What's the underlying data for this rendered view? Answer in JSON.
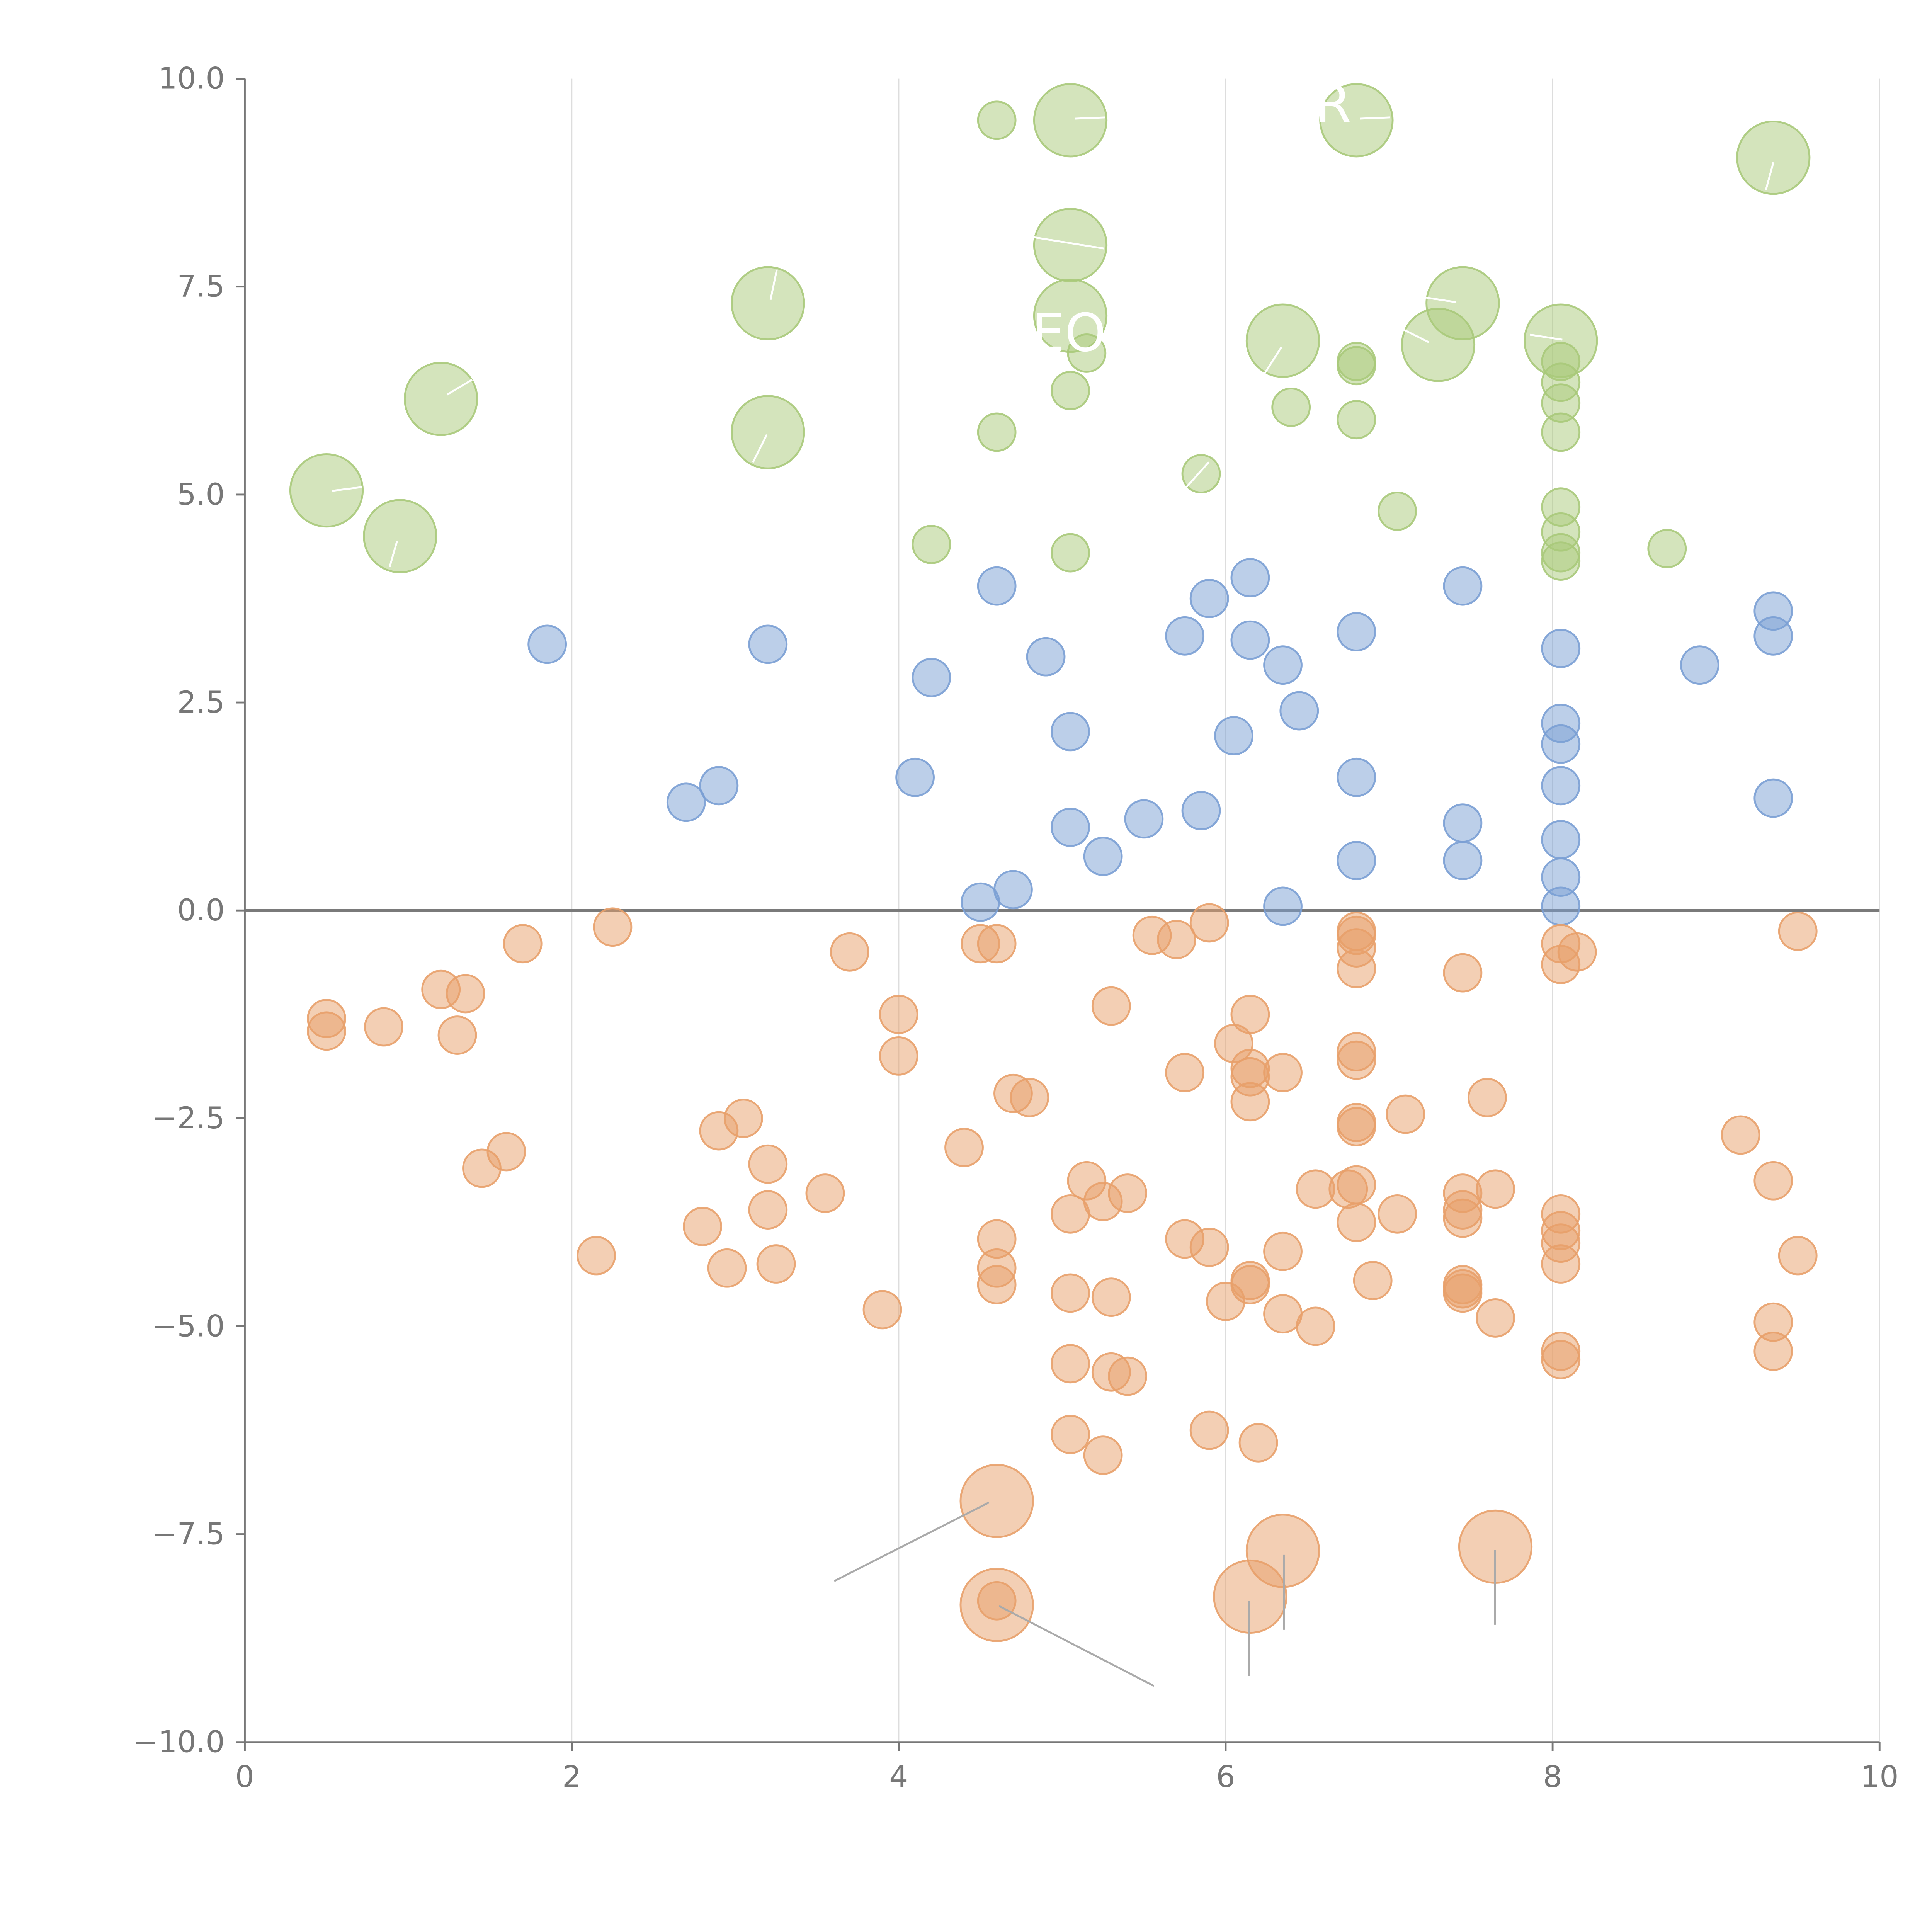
{
  "chart_data": {
    "type": "scatter",
    "title": "",
    "xlabel": "",
    "ylabel": "",
    "xlim": [
      0,
      10
    ],
    "ylim": [
      -10,
      10
    ],
    "x_ticks": [
      0,
      2,
      4,
      6,
      8,
      10
    ],
    "x_tick_labels": [
      "0",
      "2",
      "4",
      "6",
      "8",
      "10"
    ],
    "y_ticks": [
      10,
      7.5,
      5,
      2.5,
      0,
      -2.5,
      -5,
      -7.5,
      -10
    ],
    "y_tick_labels": [
      "10.0",
      "7.5",
      "5.0",
      "2.5",
      "0.0",
      "−2.5",
      "−5.0",
      "−7.5",
      "−10.0"
    ],
    "grid": "vertical lines at x ticks",
    "zero_line": 0,
    "series": [
      {
        "color": "#a9c97a",
        "points": [
          {
            "x": 4.6,
            "y": 9.5,
            "s": "small"
          },
          {
            "x": 5.05,
            "y": 9.5,
            "s": "large"
          },
          {
            "x": 6.8,
            "y": 9.5,
            "s": "large"
          },
          {
            "x": 9.35,
            "y": 9.05,
            "s": "large"
          },
          {
            "x": 5.05,
            "y": 8.0,
            "s": "large"
          },
          {
            "x": 3.2,
            "y": 7.3,
            "s": "large"
          },
          {
            "x": 5.05,
            "y": 7.15,
            "s": "large"
          },
          {
            "x": 7.45,
            "y": 7.3,
            "s": "large"
          },
          {
            "x": 6.35,
            "y": 6.85,
            "s": "large"
          },
          {
            "x": 7.3,
            "y": 6.8,
            "s": "large"
          },
          {
            "x": 8.05,
            "y": 6.85,
            "s": "large"
          },
          {
            "x": 5.15,
            "y": 6.7,
            "s": "small"
          },
          {
            "x": 6.8,
            "y": 6.6,
            "s": "small"
          },
          {
            "x": 6.8,
            "y": 6.55,
            "s": "small"
          },
          {
            "x": 8.05,
            "y": 6.6,
            "s": "small"
          },
          {
            "x": 8.05,
            "y": 6.35,
            "s": "small"
          },
          {
            "x": 5.05,
            "y": 6.25,
            "s": "small"
          },
          {
            "x": 1.2,
            "y": 6.15,
            "s": "large"
          },
          {
            "x": 8.05,
            "y": 6.1,
            "s": "small"
          },
          {
            "x": 6.4,
            "y": 6.05,
            "s": "small"
          },
          {
            "x": 6.8,
            "y": 5.9,
            "s": "small"
          },
          {
            "x": 3.2,
            "y": 5.75,
            "s": "large"
          },
          {
            "x": 4.6,
            "y": 5.75,
            "s": "small"
          },
          {
            "x": 8.05,
            "y": 5.75,
            "s": "small"
          },
          {
            "x": 5.85,
            "y": 5.25,
            "s": "small"
          },
          {
            "x": 0.5,
            "y": 5.05,
            "s": "large"
          },
          {
            "x": 8.05,
            "y": 4.85,
            "s": "small"
          },
          {
            "x": 7.05,
            "y": 4.8,
            "s": "small"
          },
          {
            "x": 0.95,
            "y": 4.5,
            "s": "large"
          },
          {
            "x": 8.05,
            "y": 4.55,
            "s": "small"
          },
          {
            "x": 4.2,
            "y": 4.4,
            "s": "small"
          },
          {
            "x": 8.7,
            "y": 4.35,
            "s": "small"
          },
          {
            "x": 8.05,
            "y": 4.3,
            "s": "small"
          },
          {
            "x": 5.05,
            "y": 4.3,
            "s": "small"
          },
          {
            "x": 8.05,
            "y": 4.2,
            "s": "small"
          }
        ]
      },
      {
        "color": "#7a9fd4",
        "points": [
          {
            "x": 6.15,
            "y": 4.0,
            "s": "small"
          },
          {
            "x": 4.6,
            "y": 3.9,
            "s": "small"
          },
          {
            "x": 7.45,
            "y": 3.9,
            "s": "small"
          },
          {
            "x": 5.9,
            "y": 3.75,
            "s": "small"
          },
          {
            "x": 9.35,
            "y": 3.6,
            "s": "small"
          },
          {
            "x": 6.8,
            "y": 3.35,
            "s": "small"
          },
          {
            "x": 9.35,
            "y": 3.3,
            "s": "small"
          },
          {
            "x": 5.75,
            "y": 3.3,
            "s": "small"
          },
          {
            "x": 6.15,
            "y": 3.25,
            "s": "small"
          },
          {
            "x": 1.85,
            "y": 3.2,
            "s": "small"
          },
          {
            "x": 3.2,
            "y": 3.2,
            "s": "small"
          },
          {
            "x": 8.05,
            "y": 3.15,
            "s": "small"
          },
          {
            "x": 4.9,
            "y": 3.05,
            "s": "small"
          },
          {
            "x": 6.35,
            "y": 2.95,
            "s": "small"
          },
          {
            "x": 8.9,
            "y": 2.95,
            "s": "small"
          },
          {
            "x": 4.2,
            "y": 2.8,
            "s": "small"
          },
          {
            "x": 6.45,
            "y": 2.4,
            "s": "small"
          },
          {
            "x": 8.05,
            "y": 2.25,
            "s": "small"
          },
          {
            "x": 5.05,
            "y": 2.15,
            "s": "small"
          },
          {
            "x": 6.05,
            "y": 2.1,
            "s": "small"
          },
          {
            "x": 8.05,
            "y": 2.0,
            "s": "small"
          },
          {
            "x": 4.1,
            "y": 1.6,
            "s": "small"
          },
          {
            "x": 6.8,
            "y": 1.6,
            "s": "small"
          },
          {
            "x": 2.9,
            "y": 1.5,
            "s": "small"
          },
          {
            "x": 8.05,
            "y": 1.5,
            "s": "small"
          },
          {
            "x": 2.7,
            "y": 1.3,
            "s": "small"
          },
          {
            "x": 9.35,
            "y": 1.35,
            "s": "small"
          },
          {
            "x": 5.85,
            "y": 1.2,
            "s": "small"
          },
          {
            "x": 5.5,
            "y": 1.1,
            "s": "small"
          },
          {
            "x": 7.45,
            "y": 1.05,
            "s": "small"
          },
          {
            "x": 5.05,
            "y": 1.0,
            "s": "small"
          },
          {
            "x": 8.05,
            "y": 0.85,
            "s": "small"
          },
          {
            "x": 5.25,
            "y": 0.65,
            "s": "small"
          },
          {
            "x": 6.8,
            "y": 0.6,
            "s": "small"
          },
          {
            "x": 7.45,
            "y": 0.6,
            "s": "small"
          },
          {
            "x": 8.05,
            "y": 0.4,
            "s": "small"
          },
          {
            "x": 4.7,
            "y": 0.25,
            "s": "small"
          },
          {
            "x": 4.5,
            "y": 0.1,
            "s": "small"
          },
          {
            "x": 6.35,
            "y": 0.05,
            "s": "small"
          },
          {
            "x": 8.05,
            "y": 0.05,
            "s": "small"
          }
        ]
      },
      {
        "color": "#e8a06a",
        "points": [
          {
            "x": 5.9,
            "y": -0.15,
            "s": "small"
          },
          {
            "x": 2.25,
            "y": -0.2,
            "s": "small"
          },
          {
            "x": 9.5,
            "y": -0.25,
            "s": "small"
          },
          {
            "x": 6.8,
            "y": -0.25,
            "s": "small"
          },
          {
            "x": 6.8,
            "y": -0.3,
            "s": "small"
          },
          {
            "x": 5.55,
            "y": -0.3,
            "s": "small"
          },
          {
            "x": 5.7,
            "y": -0.35,
            "s": "small"
          },
          {
            "x": 4.5,
            "y": -0.4,
            "s": "small"
          },
          {
            "x": 1.7,
            "y": -0.4,
            "s": "small"
          },
          {
            "x": 4.6,
            "y": -0.4,
            "s": "small"
          },
          {
            "x": 8.05,
            "y": -0.4,
            "s": "small"
          },
          {
            "x": 6.8,
            "y": -0.45,
            "s": "small"
          },
          {
            "x": 8.15,
            "y": -0.5,
            "s": "small"
          },
          {
            "x": 3.7,
            "y": -0.5,
            "s": "small"
          },
          {
            "x": 8.05,
            "y": -0.65,
            "s": "small"
          },
          {
            "x": 6.8,
            "y": -0.7,
            "s": "small"
          },
          {
            "x": 7.45,
            "y": -0.75,
            "s": "small"
          },
          {
            "x": 1.2,
            "y": -0.95,
            "s": "small"
          },
          {
            "x": 1.35,
            "y": -1.0,
            "s": "small"
          },
          {
            "x": 5.3,
            "y": -1.15,
            "s": "small"
          },
          {
            "x": 4.0,
            "y": -1.25,
            "s": "small"
          },
          {
            "x": 6.15,
            "y": -1.25,
            "s": "small"
          },
          {
            "x": 0.5,
            "y": -1.3,
            "s": "small"
          },
          {
            "x": 0.85,
            "y": -1.4,
            "s": "small"
          },
          {
            "x": 0.5,
            "y": -1.45,
            "s": "small"
          },
          {
            "x": 1.3,
            "y": -1.5,
            "s": "small"
          },
          {
            "x": 6.05,
            "y": -1.6,
            "s": "small"
          },
          {
            "x": 6.8,
            "y": -1.7,
            "s": "small"
          },
          {
            "x": 4.0,
            "y": -1.75,
            "s": "small"
          },
          {
            "x": 6.8,
            "y": -1.8,
            "s": "small"
          },
          {
            "x": 6.15,
            "y": -1.9,
            "s": "small"
          },
          {
            "x": 5.75,
            "y": -1.95,
            "s": "small"
          },
          {
            "x": 6.35,
            "y": -1.95,
            "s": "small"
          },
          {
            "x": 6.15,
            "y": -2.0,
            "s": "small"
          },
          {
            "x": 4.7,
            "y": -2.2,
            "s": "small"
          },
          {
            "x": 7.6,
            "y": -2.25,
            "s": "small"
          },
          {
            "x": 4.8,
            "y": -2.25,
            "s": "small"
          },
          {
            "x": 6.15,
            "y": -2.3,
            "s": "small"
          },
          {
            "x": 7.1,
            "y": -2.45,
            "s": "small"
          },
          {
            "x": 3.05,
            "y": -2.5,
            "s": "small"
          },
          {
            "x": 6.8,
            "y": -2.55,
            "s": "small"
          },
          {
            "x": 6.8,
            "y": -2.6,
            "s": "small"
          },
          {
            "x": 2.9,
            "y": -2.65,
            "s": "small"
          },
          {
            "x": 9.15,
            "y": -2.7,
            "s": "small"
          },
          {
            "x": 4.4,
            "y": -2.85,
            "s": "small"
          },
          {
            "x": 1.6,
            "y": -2.9,
            "s": "small"
          },
          {
            "x": 3.2,
            "y": -3.05,
            "s": "small"
          },
          {
            "x": 1.45,
            "y": -3.1,
            "s": "small"
          },
          {
            "x": 9.35,
            "y": -3.25,
            "s": "small"
          },
          {
            "x": 5.15,
            "y": -3.25,
            "s": "small"
          },
          {
            "x": 6.8,
            "y": -3.3,
            "s": "small"
          },
          {
            "x": 7.65,
            "y": -3.35,
            "s": "small"
          },
          {
            "x": 6.75,
            "y": -3.35,
            "s": "small"
          },
          {
            "x": 6.55,
            "y": -3.35,
            "s": "small"
          },
          {
            "x": 3.55,
            "y": -3.4,
            "s": "small"
          },
          {
            "x": 5.4,
            "y": -3.4,
            "s": "small"
          },
          {
            "x": 7.45,
            "y": -3.4,
            "s": "small"
          },
          {
            "x": 5.25,
            "y": -3.5,
            "s": "small"
          },
          {
            "x": 3.2,
            "y": -3.6,
            "s": "small"
          },
          {
            "x": 7.45,
            "y": -3.6,
            "s": "small"
          },
          {
            "x": 5.05,
            "y": -3.65,
            "s": "small"
          },
          {
            "x": 8.05,
            "y": -3.65,
            "s": "small"
          },
          {
            "x": 7.05,
            "y": -3.65,
            "s": "small"
          },
          {
            "x": 7.45,
            "y": -3.7,
            "s": "small"
          },
          {
            "x": 6.8,
            "y": -3.75,
            "s": "small"
          },
          {
            "x": 2.8,
            "y": -3.8,
            "s": "small"
          },
          {
            "x": 8.05,
            "y": -3.85,
            "s": "small"
          },
          {
            "x": 5.75,
            "y": -3.95,
            "s": "small"
          },
          {
            "x": 4.6,
            "y": -3.95,
            "s": "small"
          },
          {
            "x": 8.05,
            "y": -4.0,
            "s": "small"
          },
          {
            "x": 5.9,
            "y": -4.05,
            "s": "small"
          },
          {
            "x": 6.35,
            "y": -4.1,
            "s": "small"
          },
          {
            "x": 2.15,
            "y": -4.15,
            "s": "small"
          },
          {
            "x": 9.5,
            "y": -4.15,
            "s": "small"
          },
          {
            "x": 8.05,
            "y": -4.25,
            "s": "small"
          },
          {
            "x": 3.25,
            "y": -4.25,
            "s": "small"
          },
          {
            "x": 2.95,
            "y": -4.3,
            "s": "small"
          },
          {
            "x": 4.6,
            "y": -4.3,
            "s": "small"
          },
          {
            "x": 6.9,
            "y": -4.45,
            "s": "small"
          },
          {
            "x": 6.15,
            "y": -4.45,
            "s": "small"
          },
          {
            "x": 6.15,
            "y": -4.5,
            "s": "small"
          },
          {
            "x": 7.45,
            "y": -4.5,
            "s": "small"
          },
          {
            "x": 7.45,
            "y": -4.55,
            "s": "small"
          },
          {
            "x": 4.6,
            "y": -4.5,
            "s": "small"
          },
          {
            "x": 7.45,
            "y": -4.6,
            "s": "small"
          },
          {
            "x": 5.05,
            "y": -4.6,
            "s": "small"
          },
          {
            "x": 5.3,
            "y": -4.65,
            "s": "small"
          },
          {
            "x": 6.0,
            "y": -4.7,
            "s": "small"
          },
          {
            "x": 3.9,
            "y": -4.8,
            "s": "small"
          },
          {
            "x": 6.35,
            "y": -4.85,
            "s": "small"
          },
          {
            "x": 7.65,
            "y": -4.9,
            "s": "small"
          },
          {
            "x": 9.35,
            "y": -4.95,
            "s": "small"
          },
          {
            "x": 6.55,
            "y": -5.0,
            "s": "small"
          },
          {
            "x": 8.05,
            "y": -5.3,
            "s": "small"
          },
          {
            "x": 9.35,
            "y": -5.3,
            "s": "small"
          },
          {
            "x": 8.05,
            "y": -5.4,
            "s": "small"
          },
          {
            "x": 5.05,
            "y": -5.45,
            "s": "small"
          },
          {
            "x": 5.3,
            "y": -5.55,
            "s": "small"
          },
          {
            "x": 5.4,
            "y": -5.6,
            "s": "small"
          },
          {
            "x": 5.9,
            "y": -6.25,
            "s": "small"
          },
          {
            "x": 5.05,
            "y": -6.3,
            "s": "small"
          },
          {
            "x": 6.2,
            "y": -6.4,
            "s": "small"
          },
          {
            "x": 5.25,
            "y": -6.55,
            "s": "small"
          },
          {
            "x": 4.6,
            "y": -8.3,
            "s": "small"
          },
          {
            "x": 4.6,
            "y": -7.1,
            "s": "large"
          },
          {
            "x": 6.35,
            "y": -7.7,
            "s": "large"
          },
          {
            "x": 7.65,
            "y": -7.65,
            "s": "large"
          },
          {
            "x": 6.15,
            "y": -8.25,
            "s": "large"
          },
          {
            "x": 4.6,
            "y": -8.35,
            "s": "large"
          }
        ]
      }
    ]
  },
  "overlay_labels": [
    "R",
    "EO"
  ]
}
